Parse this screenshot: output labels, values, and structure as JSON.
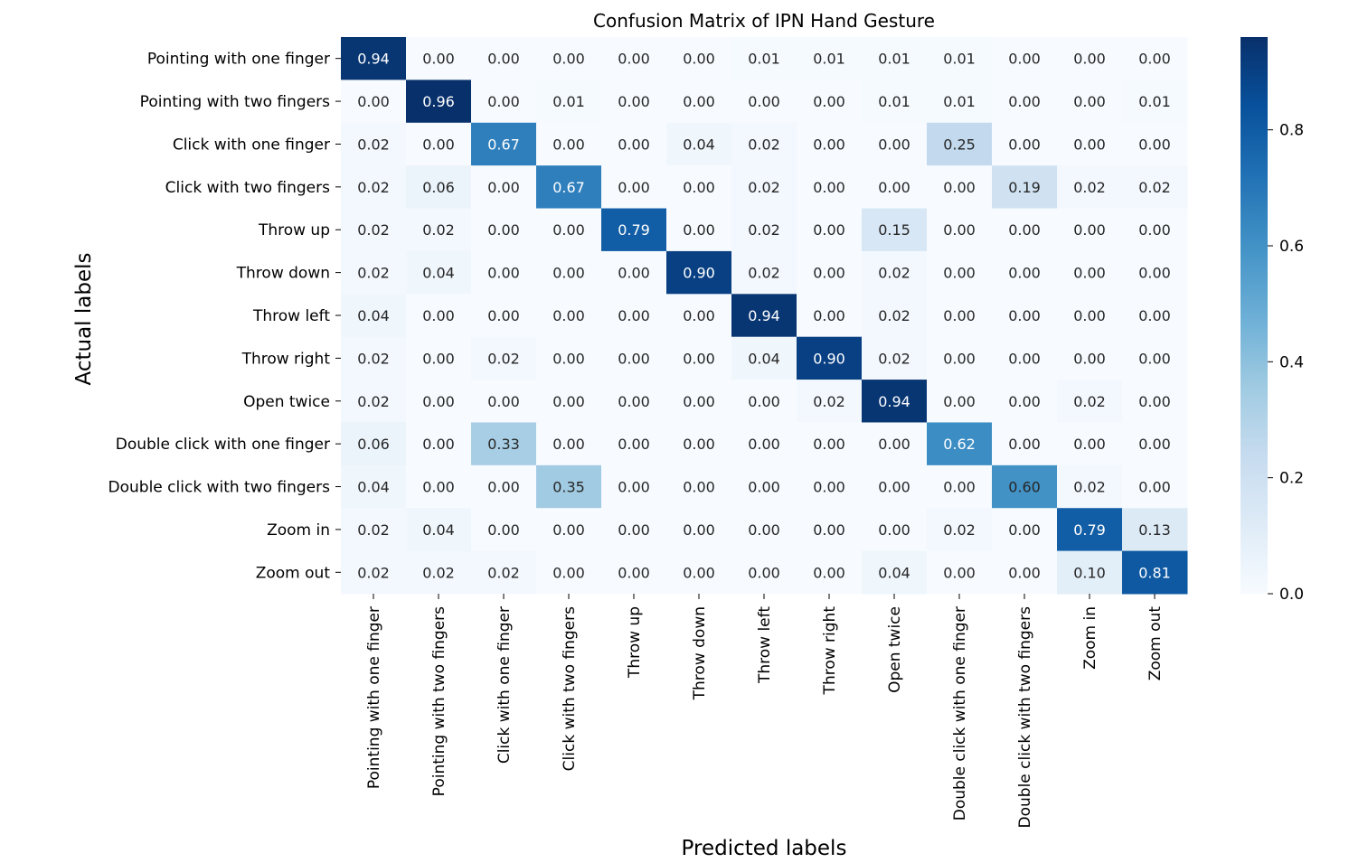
{
  "chart_data": {
    "type": "heatmap",
    "title": "Confusion Matrix of IPN Hand Gesture",
    "xlabel": "Predicted labels",
    "ylabel": "Actual labels",
    "row_labels": [
      "Pointing with one finger",
      "Pointing with two fingers",
      "Click with one finger",
      "Click with two fingers",
      "Throw up",
      "Throw down",
      "Throw left",
      "Throw right",
      "Open twice",
      "Double click with one finger",
      "Double click with two fingers",
      "Zoom in",
      "Zoom out"
    ],
    "col_labels": [
      "Pointing with one finger",
      "Pointing with two fingers",
      "Click with one finger",
      "Click with two fingers",
      "Throw up",
      "Throw down",
      "Throw left",
      "Throw right",
      "Open twice",
      "Double click with one finger",
      "Double click with two fingers",
      "Zoom in",
      "Zoom out"
    ],
    "values": [
      [
        0.94,
        0.0,
        0.0,
        0.0,
        0.0,
        0.0,
        0.01,
        0.01,
        0.01,
        0.01,
        0.0,
        0.0,
        0.0
      ],
      [
        0.0,
        0.96,
        0.0,
        0.01,
        0.0,
        0.0,
        0.0,
        0.0,
        0.01,
        0.01,
        0.0,
        0.0,
        0.01
      ],
      [
        0.02,
        0.0,
        0.67,
        0.0,
        0.0,
        0.04,
        0.02,
        0.0,
        0.0,
        0.25,
        0.0,
        0.0,
        0.0
      ],
      [
        0.02,
        0.06,
        0.0,
        0.67,
        0.0,
        0.0,
        0.02,
        0.0,
        0.0,
        0.0,
        0.19,
        0.02,
        0.02
      ],
      [
        0.02,
        0.02,
        0.0,
        0.0,
        0.79,
        0.0,
        0.02,
        0.0,
        0.15,
        0.0,
        0.0,
        0.0,
        0.0
      ],
      [
        0.02,
        0.04,
        0.0,
        0.0,
        0.0,
        0.9,
        0.02,
        0.0,
        0.02,
        0.0,
        0.0,
        0.0,
        0.0
      ],
      [
        0.04,
        0.0,
        0.0,
        0.0,
        0.0,
        0.0,
        0.94,
        0.0,
        0.02,
        0.0,
        0.0,
        0.0,
        0.0
      ],
      [
        0.02,
        0.0,
        0.02,
        0.0,
        0.0,
        0.0,
        0.04,
        0.9,
        0.02,
        0.0,
        0.0,
        0.0,
        0.0
      ],
      [
        0.02,
        0.0,
        0.0,
        0.0,
        0.0,
        0.0,
        0.0,
        0.02,
        0.94,
        0.0,
        0.0,
        0.02,
        0.0
      ],
      [
        0.06,
        0.0,
        0.33,
        0.0,
        0.0,
        0.0,
        0.0,
        0.0,
        0.0,
        0.62,
        0.0,
        0.0,
        0.0
      ],
      [
        0.04,
        0.0,
        0.0,
        0.35,
        0.0,
        0.0,
        0.0,
        0.0,
        0.0,
        0.0,
        0.6,
        0.02,
        0.0
      ],
      [
        0.02,
        0.04,
        0.0,
        0.0,
        0.0,
        0.0,
        0.0,
        0.0,
        0.0,
        0.02,
        0.0,
        0.79,
        0.13
      ],
      [
        0.02,
        0.02,
        0.02,
        0.0,
        0.0,
        0.0,
        0.0,
        0.0,
        0.04,
        0.0,
        0.0,
        0.1,
        0.81
      ]
    ],
    "value_format": "2 decimals",
    "colormap": "Blues",
    "vmin": 0.0,
    "vmax": 0.96,
    "colorbar_ticks": [
      0.0,
      0.2,
      0.4,
      0.6,
      0.8
    ],
    "colorbar_tick_labels": [
      "0.0",
      "0.2",
      "0.4",
      "0.6",
      "0.8"
    ],
    "grid": false,
    "legend": "colorbar right"
  }
}
